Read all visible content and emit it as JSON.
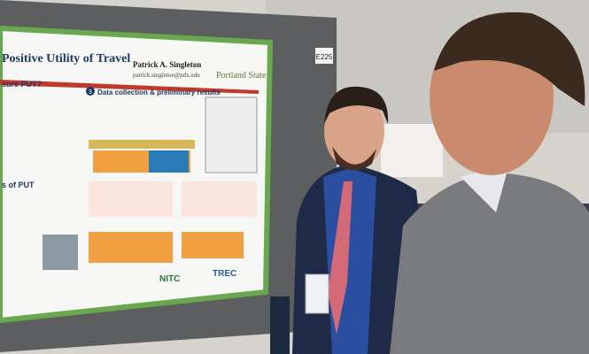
{
  "board_label": "E225",
  "poster": {
    "title": "Positive Utility of Travel",
    "author": "Patrick A. Singleton",
    "email": "patrick.singleton@pdx.edu",
    "institution": "Portland State",
    "left_heading_1": "sure PUT?",
    "left_heading_2": "s of PUT",
    "section_heading": "Data collection & preliminary results",
    "section_number": "3",
    "logos": [
      "NITC",
      "TREC"
    ]
  }
}
